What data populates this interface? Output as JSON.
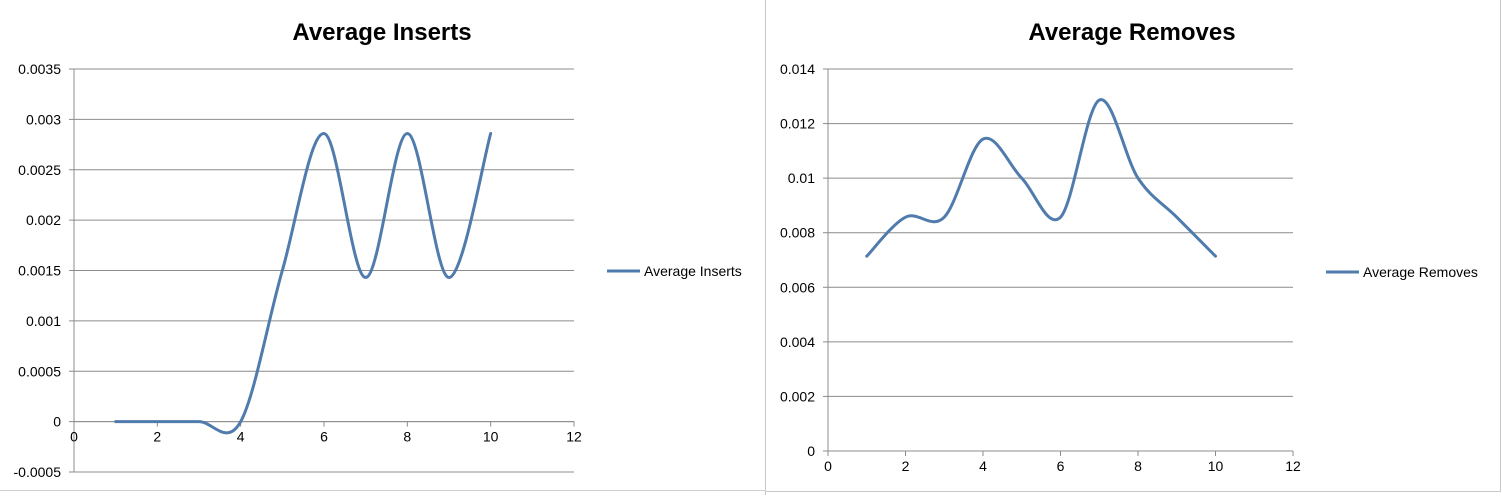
{
  "chart_data": [
    {
      "type": "line",
      "title": "Average Inserts",
      "x": [
        1,
        2,
        3,
        4,
        5,
        6,
        7,
        8,
        9,
        10
      ],
      "series": [
        {
          "name": "Average Inserts",
          "values": [
            0,
            0,
            0,
            0,
            0.0015,
            0.00286,
            0.00143,
            0.00286,
            0.00143,
            0.00286
          ]
        }
      ],
      "xlim": [
        0,
        12
      ],
      "ylim": [
        -0.0005,
        0.0035
      ],
      "xticks": [
        "0",
        "2",
        "4",
        "6",
        "8",
        "10",
        "12"
      ],
      "yticks": [
        "-0.0005",
        "0",
        "0.0005",
        "0.001",
        "0.0015",
        "0.002",
        "0.0025",
        "0.003",
        "0.0035"
      ],
      "grid": true,
      "legend": "right",
      "smooth": true,
      "color": "#4f7bad"
    },
    {
      "type": "line",
      "title": "Average Removes",
      "x": [
        1,
        2,
        3,
        4,
        5,
        6,
        7,
        8,
        9,
        10
      ],
      "series": [
        {
          "name": "Average Removes",
          "values": [
            0.00714,
            0.00857,
            0.00857,
            0.01143,
            0.01,
            0.00857,
            0.01286,
            0.01,
            0.00857,
            0.00714
          ]
        }
      ],
      "xlim": [
        0,
        12
      ],
      "ylim": [
        0,
        0.014
      ],
      "xticks": [
        "0",
        "2",
        "4",
        "6",
        "8",
        "10",
        "12"
      ],
      "yticks": [
        "0",
        "0.002",
        "0.004",
        "0.006",
        "0.008",
        "0.01",
        "0.012",
        "0.014"
      ],
      "grid": true,
      "legend": "right",
      "smooth": true,
      "color": "#4f7bad"
    }
  ]
}
